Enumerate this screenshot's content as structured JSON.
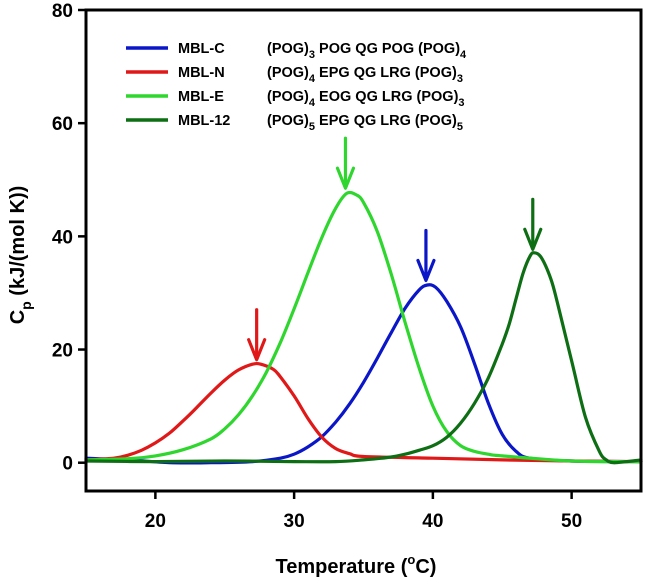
{
  "chart_data": {
    "type": "line",
    "title": "",
    "xlabel": {
      "main": "Temperature (",
      "sup": "o",
      "unit": "C)"
    },
    "ylabel": {
      "main": "C",
      "sub": "p",
      "rest": " (kJ/(mol K))"
    },
    "xlim": [
      15,
      55
    ],
    "ylim": [
      -5,
      80
    ],
    "x_ticks": [
      20,
      30,
      40,
      50
    ],
    "y_ticks": [
      0,
      20,
      40,
      60,
      80
    ],
    "grid": false,
    "legend_position": "top",
    "series": [
      {
        "name": "MBL-C",
        "color": "#0a16c8",
        "sequence": [
          {
            "t": "(POG)"
          },
          {
            "t": "3",
            "s": "sub"
          },
          {
            "t": " POG QG POG (POG)"
          },
          {
            "t": "4",
            "s": "sub"
          }
        ],
        "peak_arrow": {
          "x": 39.5,
          "y": 31.5
        },
        "points": [
          [
            15,
            0.8
          ],
          [
            18,
            0.5
          ],
          [
            21,
            0
          ],
          [
            24,
            0
          ],
          [
            27,
            0.2
          ],
          [
            29,
            0.8
          ],
          [
            30,
            1.5
          ],
          [
            31,
            2.8
          ],
          [
            32,
            4.6
          ],
          [
            33,
            7.2
          ],
          [
            34,
            10.4
          ],
          [
            35,
            14.2
          ],
          [
            36,
            18.5
          ],
          [
            37,
            23
          ],
          [
            38,
            27.3
          ],
          [
            39,
            30.5
          ],
          [
            39.6,
            31.4
          ],
          [
            40.2,
            31
          ],
          [
            41,
            28.5
          ],
          [
            42,
            24
          ],
          [
            43,
            17.5
          ],
          [
            44,
            10.5
          ],
          [
            45,
            5
          ],
          [
            46,
            2
          ],
          [
            47,
            0.8
          ],
          [
            50,
            0.3
          ],
          [
            55,
            0.2
          ]
        ]
      },
      {
        "name": "MBL-N",
        "color": "#e01818",
        "sequence": [
          {
            "t": "(POG)"
          },
          {
            "t": "4",
            "s": "sub"
          },
          {
            "t": " EPG QG LRG (POG)"
          },
          {
            "t": "3",
            "s": "sub"
          }
        ],
        "peak_arrow": {
          "x": 27.3,
          "y": 17.5
        },
        "points": [
          [
            15,
            0.5
          ],
          [
            17,
            0.8
          ],
          [
            18,
            1.3
          ],
          [
            19,
            2.2
          ],
          [
            20,
            3.5
          ],
          [
            21,
            5.2
          ],
          [
            22,
            7.4
          ],
          [
            23,
            9.8
          ],
          [
            24,
            12.3
          ],
          [
            25,
            14.6
          ],
          [
            26,
            16.4
          ],
          [
            27,
            17.4
          ],
          [
            27.6,
            17.4
          ],
          [
            28.5,
            16.5
          ],
          [
            29,
            15.2
          ],
          [
            30,
            11.8
          ],
          [
            31,
            7.8
          ],
          [
            32,
            4.5
          ],
          [
            33,
            2.5
          ],
          [
            34,
            1.6
          ],
          [
            35,
            1.1
          ],
          [
            40,
            0.8
          ],
          [
            45,
            0.5
          ],
          [
            50,
            0.3
          ],
          [
            55,
            0.2
          ]
        ]
      },
      {
        "name": "MBL-E",
        "color": "#2ed62e",
        "sequence": [
          {
            "t": "(POG)"
          },
          {
            "t": "4",
            "s": "sub"
          },
          {
            "t": " EOG QG LRG (POG)"
          },
          {
            "t": "3",
            "s": "sub"
          }
        ],
        "peak_arrow": {
          "x": 33.7,
          "y": 47.8
        },
        "points": [
          [
            15,
            0.5
          ],
          [
            18,
            0.7
          ],
          [
            20,
            1.2
          ],
          [
            22,
            2.3
          ],
          [
            24,
            4.2
          ],
          [
            25,
            6
          ],
          [
            26,
            8.5
          ],
          [
            27,
            11.8
          ],
          [
            28,
            16
          ],
          [
            29,
            21.2
          ],
          [
            30,
            27.2
          ],
          [
            31,
            33.6
          ],
          [
            32,
            39.8
          ],
          [
            33,
            45
          ],
          [
            33.8,
            47.6
          ],
          [
            34.5,
            47.3
          ],
          [
            35,
            46
          ],
          [
            36,
            40.8
          ],
          [
            37,
            33.3
          ],
          [
            38,
            24.8
          ],
          [
            39,
            16.8
          ],
          [
            40,
            10
          ],
          [
            41,
            5.5
          ],
          [
            42,
            3
          ],
          [
            43,
            2
          ],
          [
            44,
            1.5
          ],
          [
            45,
            1.2
          ],
          [
            50,
            0.3
          ],
          [
            55,
            0.2
          ]
        ]
      },
      {
        "name": "MBL-12",
        "color": "#0d6e14",
        "sequence": [
          {
            "t": "(POG)"
          },
          {
            "t": "5",
            "s": "sub"
          },
          {
            "t": " EPG QG LRG (POG)"
          },
          {
            "t": "5",
            "s": "sub"
          }
        ],
        "peak_arrow": {
          "x": 47.2,
          "y": 37
        },
        "points": [
          [
            15,
            0.3
          ],
          [
            20,
            0.2
          ],
          [
            25,
            0.3
          ],
          [
            30,
            0.2
          ],
          [
            33,
            0.2
          ],
          [
            35,
            0.5
          ],
          [
            37,
            1
          ],
          [
            38,
            1.5
          ],
          [
            39,
            2.2
          ],
          [
            40,
            3
          ],
          [
            41,
            4.5
          ],
          [
            42,
            7
          ],
          [
            43,
            10.5
          ],
          [
            44,
            15
          ],
          [
            45,
            21
          ],
          [
            45.5,
            24.5
          ],
          [
            46,
            29
          ],
          [
            46.5,
            33.5
          ],
          [
            47,
            36.5
          ],
          [
            47.3,
            37.1
          ],
          [
            47.8,
            36.3
          ],
          [
            48.5,
            32.5
          ],
          [
            49,
            28
          ],
          [
            50,
            18
          ],
          [
            51,
            8
          ],
          [
            52,
            2
          ],
          [
            52.5,
            0.5
          ],
          [
            53,
            0
          ],
          [
            54,
            0.2
          ],
          [
            55,
            0.5
          ]
        ]
      }
    ]
  }
}
